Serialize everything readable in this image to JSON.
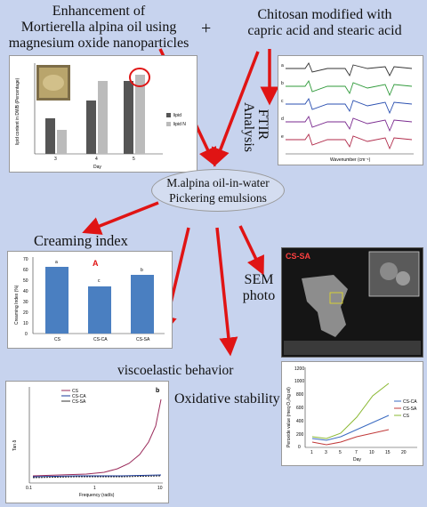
{
  "top_left_title": [
    "Enhancement of",
    "Mortierella alpina oil using",
    "magnesium oxide nanoparticles"
  ],
  "plus_sign": "+",
  "top_right_title": [
    "Chitosan modified with",
    "capric acid and  stearic acid"
  ],
  "ftir_label": [
    "FTIR",
    "Analysis"
  ],
  "center_node": [
    "M.alpina oil-in-water",
    "Pickering emulsions"
  ],
  "creaming_label": "Creaming index",
  "sem_label": [
    "SEM",
    "photo"
  ],
  "visco_label": "viscoelastic behavior",
  "oxid_label": "Oxidative stability",
  "sem_panel_tag": "CS-SA",
  "colors": {
    "arrow": "#e01414",
    "background": "#c7d3ee",
    "bar_blue": "#4a7fc1"
  },
  "lipid_chart": {
    "ylabel": "lipid content in DWB (Percentage)",
    "xlabel": "Day",
    "categories": [
      "3",
      "4",
      "5"
    ],
    "legend": [
      "lipid",
      "lipid N"
    ]
  },
  "creaming_chart": {
    "panel_letter": "A",
    "ylabel": "Creaming Index (%)",
    "yticks": [
      "0",
      "10",
      "20",
      "30",
      "40",
      "50",
      "60",
      "70"
    ],
    "categories": [
      "CS",
      "CS-CA",
      "CS-SA"
    ],
    "letters": [
      "a",
      "c",
      "b"
    ]
  },
  "visco_chart": {
    "panel_letter": "b",
    "ylabel": "Tan δ",
    "xlabel": "Frequency (rad/s)",
    "xticks": [
      "0.1",
      "1",
      "10"
    ],
    "legend": [
      "CS",
      "CS-CA",
      "CS-SA"
    ]
  },
  "oxid_chart": {
    "ylabel": "Peroxide value (meq O₂/kg oil)",
    "xlabel": "Day",
    "yticks": [
      "0",
      "200",
      "400",
      "600",
      "800",
      "1000",
      "1200"
    ],
    "xticks": [
      "1",
      "3",
      "5",
      "7",
      "10",
      "15",
      "20"
    ],
    "legend": [
      "CS-CA",
      "CS-SA",
      "CS"
    ]
  },
  "ftir_chart": {
    "xlabel": "Wavenumber (cm⁻¹)",
    "rows": [
      "a",
      "b",
      "c",
      "d",
      "e"
    ]
  }
}
